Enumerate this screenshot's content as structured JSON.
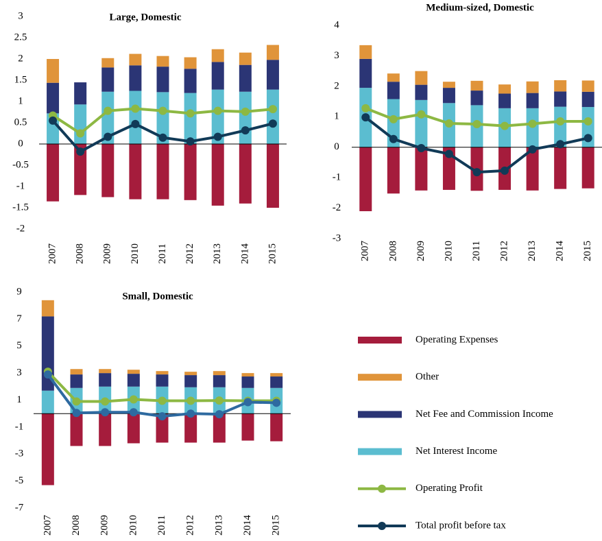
{
  "chart_data": [
    {
      "type": "bar",
      "stacked": true,
      "title": "Large, Domestic",
      "categories": [
        "2007",
        "2008",
        "2009",
        "2010",
        "2011",
        "2012",
        "2013",
        "2014",
        "2015"
      ],
      "ylim": [
        -2,
        3
      ],
      "yticks": [
        -2,
        -1.5,
        -1,
        -0.5,
        0,
        0.5,
        1,
        1.5,
        2,
        2.5,
        3
      ],
      "series": [
        {
          "name": "Operating Expenses",
          "color": "#a51c3c",
          "values": [
            -1.35,
            -1.2,
            -1.25,
            -1.3,
            -1.3,
            -1.32,
            -1.45,
            -1.4,
            -1.5
          ]
        },
        {
          "name": "Other",
          "color": "#e0943a",
          "values": [
            0.56,
            0,
            0.22,
            0.27,
            0.25,
            0.27,
            0.3,
            0.29,
            0.35
          ]
        },
        {
          "name": "Net Fee and Commission Income",
          "color": "#2b3575",
          "values": [
            0.72,
            0.52,
            0.57,
            0.6,
            0.6,
            0.57,
            0.65,
            0.63,
            0.7
          ]
        },
        {
          "name": "Net Interest Income",
          "color": "#5bbdd0",
          "values": [
            0.72,
            0.93,
            1.23,
            1.25,
            1.22,
            1.2,
            1.28,
            1.23,
            1.28
          ]
        },
        {
          "name": "Operating Profit",
          "type": "line",
          "color": "#8db843",
          "values": [
            0.67,
            0.25,
            0.78,
            0.83,
            0.78,
            0.72,
            0.78,
            0.76,
            0.82
          ]
        },
        {
          "name": "Total profit before tax",
          "type": "line",
          "color": "#113a57",
          "values": [
            0.55,
            -0.18,
            0.17,
            0.47,
            0.15,
            0.06,
            0.17,
            0.32,
            0.48
          ]
        }
      ]
    },
    {
      "type": "bar",
      "stacked": true,
      "title": "Medium-sized, Domestic",
      "categories": [
        "2007",
        "2008",
        "2009",
        "2010",
        "2011",
        "2012",
        "2013",
        "2014",
        "2015"
      ],
      "ylim": [
        -3,
        4
      ],
      "yticks": [
        -3,
        -2,
        -1,
        0,
        1,
        2,
        3,
        4
      ],
      "series": [
        {
          "name": "Operating Expenses",
          "color": "#a51c3c",
          "values": [
            -2.1,
            -1.52,
            -1.42,
            -1.4,
            -1.43,
            -1.4,
            -1.42,
            -1.37,
            -1.35
          ]
        },
        {
          "name": "Other",
          "color": "#e0943a",
          "values": [
            0.45,
            0.27,
            0.45,
            0.2,
            0.32,
            0.3,
            0.38,
            0.37,
            0.37
          ]
        },
        {
          "name": "Net Fee and Commission Income",
          "color": "#2b3575",
          "values": [
            0.95,
            0.57,
            0.5,
            0.5,
            0.48,
            0.48,
            0.5,
            0.5,
            0.5
          ]
        },
        {
          "name": "Net Interest Income",
          "color": "#5bbdd0",
          "values": [
            1.95,
            1.58,
            1.55,
            1.45,
            1.38,
            1.28,
            1.28,
            1.33,
            1.32
          ]
        },
        {
          "name": "Operating Profit",
          "type": "line",
          "color": "#8db843",
          "values": [
            1.28,
            0.92,
            1.08,
            0.78,
            0.76,
            0.7,
            0.77,
            0.85,
            0.85
          ]
        },
        {
          "name": "Total profit before tax",
          "type": "line",
          "color": "#113a57",
          "values": [
            0.98,
            0.27,
            -0.03,
            -0.22,
            -0.82,
            -0.77,
            -0.07,
            0.1,
            0.3
          ]
        }
      ]
    },
    {
      "type": "bar",
      "stacked": true,
      "title": "Small, Domestic",
      "categories": [
        "2007",
        "2008",
        "2009",
        "2010",
        "2011",
        "2012",
        "2013",
        "2014",
        "2015"
      ],
      "ylim": [
        -7,
        9
      ],
      "yticks": [
        -7,
        -5,
        -3,
        -1,
        1,
        3,
        5,
        7,
        9
      ],
      "series": [
        {
          "name": "Operating Expenses",
          "color": "#a51c3c",
          "values": [
            -5.3,
            -2.4,
            -2.4,
            -2.2,
            -2.15,
            -2.15,
            -2.15,
            -2.0,
            -2.05
          ]
        },
        {
          "name": "Other",
          "color": "#e0943a",
          "values": [
            1.2,
            0.4,
            0.3,
            0.3,
            0.25,
            0.25,
            0.3,
            0.25,
            0.25
          ]
        },
        {
          "name": "Net Fee and Commission Income",
          "color": "#2b3575",
          "values": [
            5.5,
            1.0,
            1.0,
            0.95,
            0.9,
            0.9,
            0.9,
            0.85,
            0.85
          ]
        },
        {
          "name": "Net Interest Income",
          "color": "#5bbdd0",
          "values": [
            1.7,
            1.9,
            2.0,
            2.0,
            2.0,
            1.95,
            1.95,
            1.9,
            1.9
          ]
        },
        {
          "name": "Operating Profit",
          "type": "line",
          "color": "#8db843",
          "values": [
            3.1,
            0.9,
            0.9,
            1.05,
            0.95,
            0.95,
            0.97,
            0.95,
            0.95
          ]
        },
        {
          "name": "Total profit before tax",
          "type": "line",
          "color": "#2e6aa0",
          "values": [
            2.9,
            0.05,
            0.1,
            0.1,
            -0.2,
            0.0,
            -0.05,
            0.85,
            0.8
          ]
        }
      ]
    }
  ]
}
